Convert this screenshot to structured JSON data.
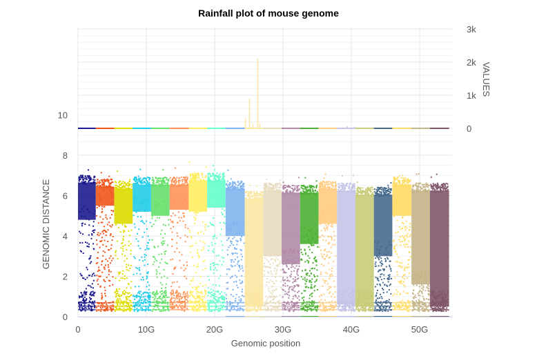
{
  "chart_data": {
    "type": "scatter",
    "title": "Rainfall plot of mouse genome",
    "xlabel": "Genomic position",
    "ylabel": "GENOMIC DISTANCE",
    "y2label": "VALUES",
    "xlim": [
      0,
      55
    ],
    "x_ticks": [
      "0",
      "10G",
      "20G",
      "30G",
      "40G",
      "50G"
    ],
    "x_tick_values": [
      0,
      10,
      20,
      30,
      40,
      50
    ],
    "ylim": [
      0,
      10
    ],
    "y_ticks": [
      "0",
      "2",
      "4",
      "6",
      "8",
      "10"
    ],
    "y_tick_values": [
      0,
      2,
      4,
      6,
      8,
      10
    ],
    "y2lim": [
      0,
      3000
    ],
    "y2_ticks": [
      "0",
      "1k",
      "2k",
      "3k"
    ],
    "y2_tick_values": [
      0,
      1000,
      2000,
      3000
    ],
    "grid": true,
    "chromosomes": [
      {
        "start": 0.0,
        "end": 2.6,
        "color": "#1c1c8e",
        "top": 7.0,
        "dense_to": 4.8,
        "bottom_cluster": true
      },
      {
        "start": 2.6,
        "end": 5.3,
        "color": "#f0561c",
        "top": 6.8,
        "dense_to": 5.5,
        "bottom_cluster": false
      },
      {
        "start": 5.3,
        "end": 8.0,
        "color": "#dcdc00",
        "top": 6.7,
        "dense_to": 4.6,
        "bottom_cluster": true
      },
      {
        "start": 8.0,
        "end": 10.7,
        "color": "#22cce8",
        "top": 6.9,
        "dense_to": 5.2,
        "bottom_cluster": true
      },
      {
        "start": 10.7,
        "end": 13.4,
        "color": "#66e06a",
        "top": 6.9,
        "dense_to": 5.0,
        "bottom_cluster": true
      },
      {
        "start": 13.4,
        "end": 16.2,
        "color": "#ff9458",
        "top": 6.9,
        "dense_to": 5.3,
        "bottom_cluster": true
      },
      {
        "start": 16.2,
        "end": 18.9,
        "color": "#ffee60",
        "top": 7.1,
        "dense_to": 5.2,
        "bottom_cluster": true
      },
      {
        "start": 18.9,
        "end": 21.6,
        "color": "#66ffcc",
        "top": 7.1,
        "dense_to": 5.4,
        "bottom_cluster": true
      },
      {
        "start": 21.6,
        "end": 24.4,
        "color": "#80b4ee",
        "top": 6.7,
        "dense_to": 4.0,
        "bottom_cluster": false
      },
      {
        "start": 24.4,
        "end": 27.1,
        "color": "#fbe6a2",
        "top": 6.2,
        "dense_to": 0.5,
        "bottom_cluster": false
      },
      {
        "start": 27.1,
        "end": 29.8,
        "color": "#e8dcc0",
        "top": 6.6,
        "dense_to": 3.0,
        "bottom_cluster": false
      },
      {
        "start": 29.8,
        "end": 32.5,
        "color": "#b08aa8",
        "top": 6.5,
        "dense_to": 2.6,
        "bottom_cluster": false
      },
      {
        "start": 32.5,
        "end": 35.2,
        "color": "#4cb034",
        "top": 6.5,
        "dense_to": 3.6,
        "bottom_cluster": false
      },
      {
        "start": 35.2,
        "end": 37.9,
        "color": "#ffcc80",
        "top": 6.7,
        "dense_to": 4.6,
        "bottom_cluster": false
      },
      {
        "start": 37.9,
        "end": 40.6,
        "color": "#c4c4e8",
        "top": 6.6,
        "dense_to": 0.6,
        "bottom_cluster": false
      },
      {
        "start": 40.6,
        "end": 43.3,
        "color": "#c8cc78",
        "top": 6.4,
        "dense_to": 0.5,
        "bottom_cluster": false
      },
      {
        "start": 43.3,
        "end": 46.0,
        "color": "#466a8c",
        "top": 6.4,
        "dense_to": 3.0,
        "bottom_cluster": false
      },
      {
        "start": 46.0,
        "end": 48.8,
        "color": "#ffdc64",
        "top": 6.9,
        "dense_to": 5.0,
        "bottom_cluster": false
      },
      {
        "start": 48.8,
        "end": 51.5,
        "color": "#c4b488",
        "top": 6.6,
        "dense_to": 1.6,
        "bottom_cluster": false
      },
      {
        "start": 51.5,
        "end": 54.3,
        "color": "#80566a",
        "top": 6.6,
        "dense_to": 0.5,
        "bottom_cluster": false
      }
    ],
    "value_spikes": [
      {
        "x": 24.5,
        "value": 300
      },
      {
        "x": 25.1,
        "value": 900
      },
      {
        "x": 25.6,
        "value": 120
      },
      {
        "x": 26.3,
        "value": 2100
      },
      {
        "x": 26.6,
        "value": 150
      },
      {
        "x": 39.4,
        "value": 60
      },
      {
        "x": 40.5,
        "value": 50
      }
    ]
  }
}
